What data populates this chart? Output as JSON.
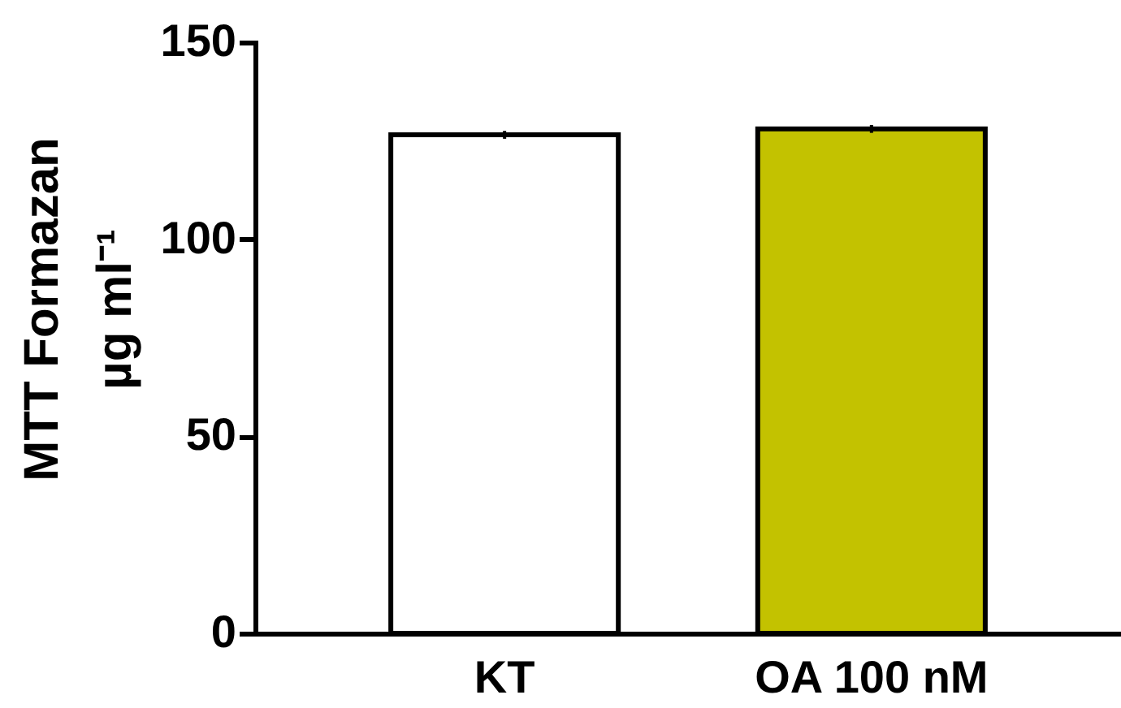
{
  "chart_data": {
    "type": "bar",
    "ylabel": "MTT Formazan\nµg ml⁻¹",
    "categories": [
      "KT",
      "OA 100 nM"
    ],
    "values": [
      126.5,
      128
    ],
    "errors": [
      1,
      1
    ],
    "colors": [
      "#ffffff",
      "#c3c200"
    ],
    "ylim": [
      0,
      150
    ],
    "yticks": [
      0,
      50,
      100,
      150
    ]
  }
}
